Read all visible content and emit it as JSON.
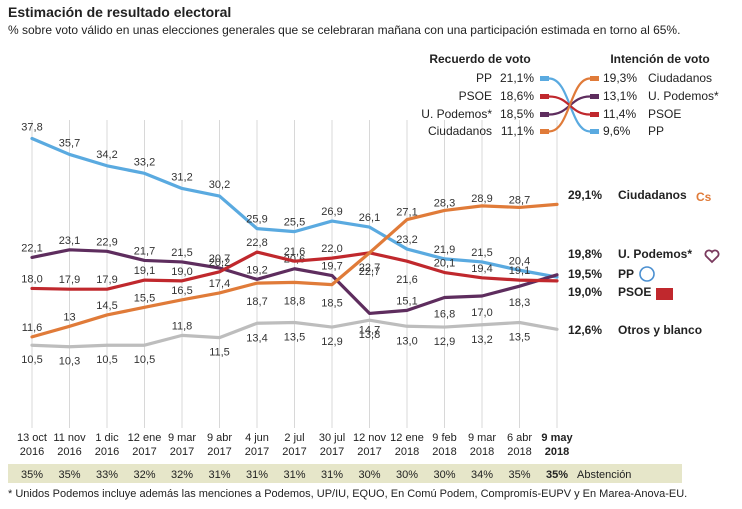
{
  "title": "Estimación de resultado electoral",
  "subtitle": "% sobre voto válido en unas elecciones generales que se celebraran mañana con una participación estimada en torno al 65%.",
  "footnote": "* Unidos Podemos incluye además las menciones a Podemos, UP/IU, EQUO, En Comú Podem, Compromís-EUPV y En Marea-Anova-EU.",
  "legend": {
    "left_header": "Recuerdo de voto",
    "right_header": "Intención de voto",
    "recuerdo": [
      {
        "party": "PP",
        "value": "21,1%",
        "color": "#5aaae0"
      },
      {
        "party": "PSOE",
        "value": "18,6%",
        "color": "#c0282d"
      },
      {
        "party": "U. Podemos*",
        "value": "18,5%",
        "color": "#5e2d5e"
      },
      {
        "party": "Ciudadanos",
        "value": "11,1%",
        "color": "#e07b39"
      }
    ],
    "intencion": [
      {
        "party": "Ciudadanos",
        "value": "19,3%",
        "color": "#e07b39"
      },
      {
        "party": "U. Podemos*",
        "value": "13,1%",
        "color": "#5e2d5e"
      },
      {
        "party": "PSOE",
        "value": "11,4%",
        "color": "#c0282d"
      },
      {
        "party": "PP",
        "value": "9,6%",
        "color": "#5aaae0"
      }
    ]
  },
  "chart_data": {
    "type": "line",
    "x": [
      "13 oct 2016",
      "11 nov 2016",
      "1 dic 2016",
      "12 ene 2017",
      "9 mar 2017",
      "9 abr 2017",
      "4 jun 2017",
      "2 jul 2017",
      "30 jul 2017",
      "12 nov 2017",
      "12 ene 2018",
      "9 feb 2018",
      "9 mar 2018",
      "6 abr 2018",
      "9 may 2018"
    ],
    "x_top": [
      "13 oct",
      "11 nov",
      "1 dic",
      "12 ene",
      "9 mar",
      "9 abr",
      "4 jun",
      "2 jul",
      "30 jul",
      "12 nov",
      "12 ene",
      "9 feb",
      "9 mar",
      "6 abr",
      "9 may"
    ],
    "x_bottom": [
      "2016",
      "2016",
      "2016",
      "2017",
      "2017",
      "2017",
      "2017",
      "2017",
      "2017",
      "2017",
      "2018",
      "2018",
      "2018",
      "2018",
      "2018"
    ],
    "series": [
      {
        "name": "PP",
        "color": "#5aaae0",
        "values": [
          37.8,
          35.7,
          34.2,
          33.2,
          31.2,
          30.2,
          25.9,
          25.5,
          26.9,
          26.1,
          23.2,
          21.9,
          21.5,
          20.4,
          19.5
        ],
        "labels": [
          "37,8",
          "35,7",
          "34,2",
          "33,2",
          "31,2",
          "30,2",
          "25,9",
          "25,5",
          "26,9",
          "26,1",
          "23,2",
          "21,9",
          "21,5",
          "20,4",
          "19,5%"
        ],
        "end_label": "PP"
      },
      {
        "name": "U. Podemos*",
        "color": "#5e2d5e",
        "values": [
          22.1,
          23.1,
          22.9,
          21.7,
          21.5,
          20.7,
          19.2,
          20.6,
          19.7,
          14.7,
          15.1,
          16.8,
          17.0,
          18.3,
          19.8
        ],
        "labels": [
          "22,1",
          "23,1",
          "22,9",
          "21,7",
          "21,5",
          "20,7",
          "19,2",
          "20,6",
          "19,7",
          "14,7",
          "15,1",
          "16,8",
          "17,0",
          "18,3",
          "19,8%"
        ],
        "end_label": "U. Podemos*"
      },
      {
        "name": "PSOE",
        "color": "#c0282d",
        "values": [
          18.0,
          17.9,
          17.9,
          19.1,
          19.0,
          20.2,
          22.8,
          21.6,
          22.0,
          22.7,
          21.6,
          20.1,
          19.4,
          19.1,
          19.0
        ],
        "labels": [
          "18,0",
          "17,9",
          "17,9",
          "19,1",
          "19,0",
          "20,2",
          "22,8",
          "21,6",
          "22,0",
          "22,7",
          "21,6",
          "20,1",
          "19,4",
          "19,1",
          "19,0%"
        ],
        "end_label": "PSOE"
      },
      {
        "name": "Ciudadanos",
        "color": "#e07b39",
        "values": [
          11.6,
          13.0,
          14.5,
          15.5,
          16.5,
          17.4,
          18.7,
          18.8,
          18.5,
          22.7,
          27.1,
          28.3,
          28.9,
          28.7,
          29.1
        ],
        "labels": [
          "11,6",
          "13",
          "14,5",
          "15,5",
          "16,5",
          "17,4",
          "18,7",
          "18,8",
          "18,5",
          "22,7",
          "27,1",
          "28,3",
          "28,9",
          "28,7",
          "29,1%"
        ],
        "end_label": "Ciudadanos"
      },
      {
        "name": "Otros y blanco",
        "color": "#bdbdbd",
        "values": [
          10.5,
          10.3,
          10.5,
          10.5,
          11.8,
          11.5,
          13.4,
          13.5,
          12.9,
          13.8,
          13.0,
          12.9,
          13.2,
          13.5,
          12.6
        ],
        "labels": [
          "10,5",
          "10,3",
          "10,5",
          "10,5",
          "11,8",
          "11,5",
          "13,4",
          "13,5",
          "12,9",
          "13,8",
          "13,0",
          "12,9",
          "13,2",
          "13,5",
          "12,6%"
        ],
        "end_label": "Otros y blanco"
      }
    ],
    "abstencion": [
      "35%",
      "35%",
      "33%",
      "32%",
      "32%",
      "31%",
      "31%",
      "31%",
      "31%",
      "30%",
      "30%",
      "30%",
      "34%",
      "35%",
      "35%"
    ],
    "abstencion_label": "Abstención",
    "ylim": [
      9,
      39
    ],
    "grid": true
  },
  "colors": {
    "pp": "#5aaae0",
    "psoe": "#c0282d",
    "podemos": "#5e2d5e",
    "ciudadanos": "#e07b39",
    "otros": "#bdbdbd",
    "abstencion_band": "#e6e6c9"
  }
}
